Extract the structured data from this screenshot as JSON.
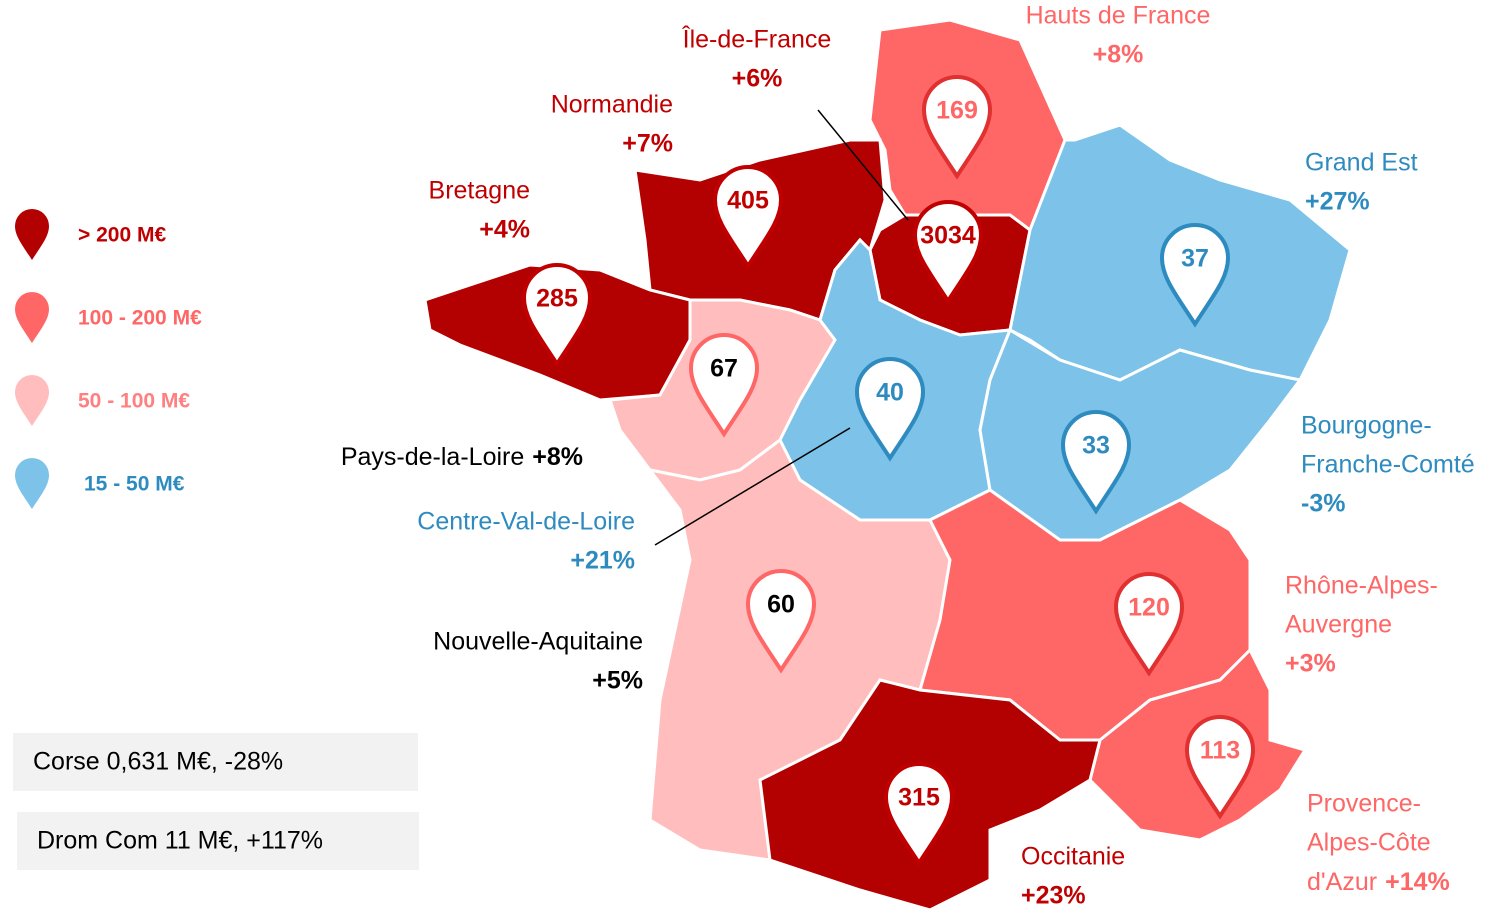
{
  "legend": [
    {
      "label": "> 200 M€",
      "color": "#b30000"
    },
    {
      "label": "100 - 200 M€",
      "color": "#ff6666"
    },
    {
      "label": "50 - 100 M€",
      "color": "#ffbdbd"
    },
    {
      "label": "15 - 50 M€",
      "color": "#7dc2e8"
    }
  ],
  "regions": [
    {
      "name": [
        "Hauts de France"
      ],
      "change": "+8%",
      "value": 169,
      "tier": 1
    },
    {
      "name": [
        "Île-de-France"
      ],
      "change": "+6%",
      "value": 3034,
      "tier": 0
    },
    {
      "name": [
        "Normandie"
      ],
      "change": "+7%",
      "value": 405,
      "tier": 0
    },
    {
      "name": [
        "Bretagne"
      ],
      "change": "+4%",
      "value": 285,
      "tier": 0
    },
    {
      "name": [
        "Pays-de-la-Loire"
      ],
      "change": "+8%",
      "value": 67,
      "tier": 2
    },
    {
      "name": [
        "Centre-Val-de-Loire"
      ],
      "change": "+21%",
      "value": 40,
      "tier": 3
    },
    {
      "name": [
        "Nouvelle-Aquitaine"
      ],
      "change": "+5%",
      "value": 60,
      "tier": 2
    },
    {
      "name": [
        "Grand Est"
      ],
      "change": "+27%",
      "value": 37,
      "tier": 3
    },
    {
      "name": [
        "Bourgogne-",
        "Franche-Comté"
      ],
      "change": "-3%",
      "value": 33,
      "tier": 3
    },
    {
      "name": [
        "Rhône-Alpes-",
        "Auvergne"
      ],
      "change": "+3%",
      "value": 120,
      "tier": 1
    },
    {
      "name": [
        "Provence-",
        "Alpes-Côte",
        "d'Azur"
      ],
      "change": "+14%",
      "value": 113,
      "tier": 1
    },
    {
      "name": [
        "Occitanie"
      ],
      "change": "+23%",
      "value": 315,
      "tier": 0
    }
  ],
  "boxes": [
    "Corse 0,631 M€, -28%",
    "Drom Com 11 M€, +117%"
  ]
}
